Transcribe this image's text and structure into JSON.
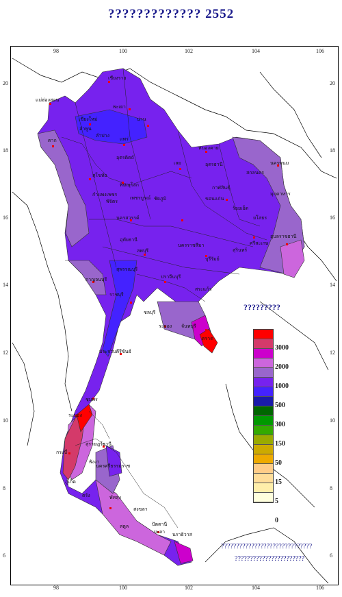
{
  "title": "????????????? 2552",
  "longitude_ticks": [
    "98",
    "100",
    "102",
    "104",
    "106"
  ],
  "latitude_ticks": [
    "20",
    "18",
    "16",
    "14",
    "12",
    "10",
    "8",
    "6"
  ],
  "legend": {
    "title": "?????????",
    "colors": [
      "#ff0000",
      "#d43a6a",
      "#cc00cc",
      "#cc66dd",
      "#9966cc",
      "#7722ee",
      "#4422ff",
      "#1a1aaa",
      "#006600",
      "#009900",
      "#33aa00",
      "#99aa00",
      "#ccaa00",
      "#eeaa00",
      "#ffcc88",
      "#ffdd99",
      "#ffeeaa",
      "#ffffdd"
    ],
    "levels": [
      "3000",
      "2000",
      "1000",
      "500",
      "300",
      "150",
      "50",
      "15",
      "5",
      "0"
    ]
  },
  "place_labels": [
    "เชียงราย",
    "แม่ฮ่องสอน",
    "พะเยา",
    "น่าน",
    "เชียงใหม่",
    "ลำปาง",
    "แพร่",
    "ลำพูน",
    "ตาก",
    "อุตรดิตถ์",
    "หนองคาย",
    "อุดรธานี",
    "นครพนม",
    "เลย",
    "สกลนคร",
    "สุโขทัย",
    "พิษณุโลก",
    "กาฬสินธุ์",
    "มุกดาหาร",
    "กำแพงเพชร",
    "พิจิตร",
    "ขอนแก่น",
    "เพชรบูรณ์",
    "ชัยภูมิ",
    "ร้อยเอ็ด",
    "นครสวรรค์",
    "ยโสธร",
    "อุบลราชธานี",
    "ศรีสะเกษ",
    "อุทัยธานี",
    "ลพบุรี",
    "นครราชสีมา",
    "สุรินทร์",
    "บุรีรัมย์",
    "กาญจนบุรี",
    "สุพรรณบุรี",
    "ปราจีนบุรี",
    "ราชบุรี",
    "สระแก้ว",
    "ชลบุรี",
    "ระยอง",
    "จันทบุรี",
    "ตราด",
    "ประจวบคีรีขันธ์",
    "ชุมพร",
    "ระนอง",
    "สุราษฎร์ธานี",
    "พังงา",
    "กระบี่",
    "ภูเก็ต",
    "นครศรีธรรมราช",
    "ตรัง",
    "พัทลุง",
    "สงขลา",
    "สตูล",
    "ปัตตานี",
    "ยะลา",
    "นราธิวาส"
  ],
  "notes": [
    "??????????????????????????????",
    "???????????????????????"
  ]
}
